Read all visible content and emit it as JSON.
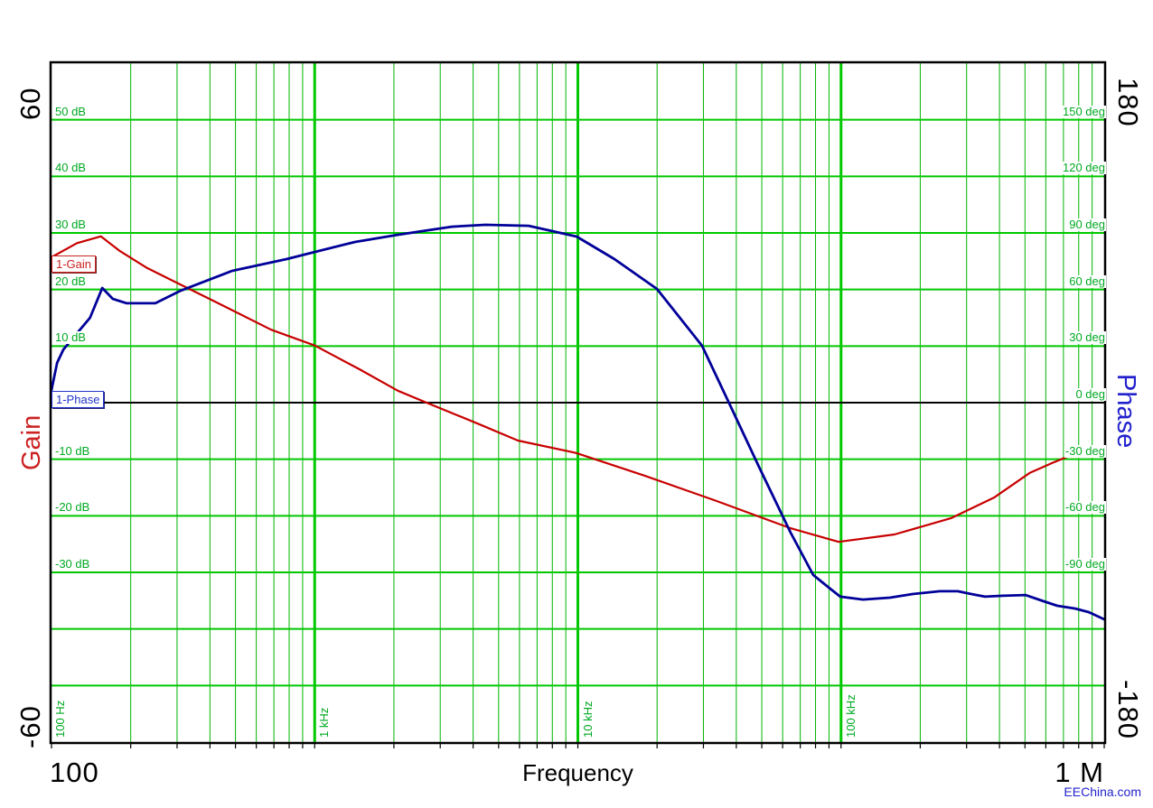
{
  "watermark": {
    "text": "EEChina.com",
    "color": "#2222CC"
  },
  "colors": {
    "background": "#FFFFFF",
    "grid_major": "#00C800",
    "grid_minor": "#00B400",
    "grid_label": "#00AA22",
    "axis_frame": "#000000",
    "zero_line": "#000000",
    "gain_curve": "#C80000",
    "phase_curve": "#000099"
  },
  "axes": {
    "x": {
      "label": "Frequency",
      "scale": "log",
      "min_hz": 100,
      "max_hz": 1000000,
      "corner_min_label": "100",
      "corner_max_label": "1 M",
      "decade_tick_labels": [
        {
          "hz": 100,
          "label": "100 Hz"
        },
        {
          "hz": 1000,
          "label": "1 kHz"
        },
        {
          "hz": 10000,
          "label": "10 kHz"
        },
        {
          "hz": 100000,
          "label": "100 kHz"
        }
      ]
    },
    "gain": {
      "title": "Gain",
      "outer_max_label": "60",
      "outer_min_label": "-60",
      "min": -60,
      "max": 60,
      "step": 10,
      "tick_labels": [
        {
          "value": 50,
          "label": "50 dB"
        },
        {
          "value": 40,
          "label": "40 dB"
        },
        {
          "value": 30,
          "label": "30 dB"
        },
        {
          "value": 20,
          "label": "20 dB"
        },
        {
          "value": 10,
          "label": "10 dB"
        },
        {
          "value": -10,
          "label": "-10 dB"
        },
        {
          "value": -20,
          "label": "-20 dB"
        },
        {
          "value": -30,
          "label": "-30 dB"
        }
      ]
    },
    "phase": {
      "title": "Phase",
      "outer_max_label": "180",
      "outer_min_label": "-180",
      "min": -180,
      "max": 180,
      "step": 30,
      "tick_labels": [
        {
          "value": 150,
          "label": "150 deg"
        },
        {
          "value": 120,
          "label": "120 deg"
        },
        {
          "value": 90,
          "label": "90 deg"
        },
        {
          "value": 60,
          "label": "60 deg"
        },
        {
          "value": 30,
          "label": "30 deg"
        },
        {
          "value": 0,
          "label": "0 deg"
        },
        {
          "value": -30,
          "label": "-30 deg"
        },
        {
          "value": -60,
          "label": "-60 deg"
        },
        {
          "value": -90,
          "label": "-90 deg"
        }
      ]
    }
  },
  "chart_data": {
    "type": "line",
    "title": "",
    "x_axis": {
      "label": "Frequency",
      "scale": "log",
      "range_hz": [
        100,
        1000000
      ]
    },
    "y_axes": [
      {
        "id": "gain",
        "label": "Gain",
        "unit": "dB",
        "range": [
          -60,
          60
        ],
        "grid_step": 10
      },
      {
        "id": "phase",
        "label": "Phase",
        "unit": "deg",
        "range": [
          -180,
          180
        ],
        "grid_step": 30
      }
    ],
    "grid": true,
    "legend_position": "inside-left",
    "series": [
      {
        "name": "1-Gain",
        "y_axis": "gain",
        "color": "#C80000",
        "points": [
          [
            100,
            25.7
          ],
          [
            125,
            28.2
          ],
          [
            154,
            29.4
          ],
          [
            182,
            26.8
          ],
          [
            231,
            23.8
          ],
          [
            293,
            21.4
          ],
          [
            425,
            17.7
          ],
          [
            683,
            12.9
          ],
          [
            1000,
            10.1
          ],
          [
            1480,
            5.9
          ],
          [
            2070,
            2.1
          ],
          [
            2660,
            0.0
          ],
          [
            4210,
            -3.8
          ],
          [
            5920,
            -6.7
          ],
          [
            9860,
            -8.9
          ],
          [
            17900,
            -12.9
          ],
          [
            33700,
            -17.4
          ],
          [
            64300,
            -22.2
          ],
          [
            97900,
            -24.6
          ],
          [
            159600,
            -23.3
          ],
          [
            262900,
            -20.4
          ],
          [
            381000,
            -16.8
          ],
          [
            522000,
            -12.4
          ],
          [
            647000,
            -10.5
          ],
          [
            796000,
            -8.8
          ],
          [
            1000000,
            -8.3
          ]
        ]
      },
      {
        "name": "1-Phase",
        "y_axis": "phase",
        "color": "#000099",
        "points": [
          [
            100,
            6.7
          ],
          [
            105,
            21.1
          ],
          [
            111,
            28.2
          ],
          [
            140,
            45.0
          ],
          [
            156,
            60.8
          ],
          [
            171,
            55.0
          ],
          [
            193,
            52.7
          ],
          [
            248,
            52.7
          ],
          [
            310,
            59.4
          ],
          [
            486,
            69.9
          ],
          [
            782,
            76.1
          ],
          [
            1000,
            79.9
          ],
          [
            1425,
            85.2
          ],
          [
            2065,
            89.0
          ],
          [
            3320,
            93.3
          ],
          [
            4450,
            94.3
          ],
          [
            6500,
            93.8
          ],
          [
            9890,
            88.1
          ],
          [
            13770,
            76.1
          ],
          [
            19970,
            60.3
          ],
          [
            29640,
            30.2
          ],
          [
            37900,
            -1.4
          ],
          [
            48760,
            -34.0
          ],
          [
            64300,
            -68.9
          ],
          [
            78400,
            -91.4
          ],
          [
            91800,
            -99.1
          ],
          [
            99300,
            -102.9
          ],
          [
            121100,
            -104.4
          ],
          [
            153500,
            -103.4
          ],
          [
            187100,
            -101.5
          ],
          [
            237200,
            -100.0
          ],
          [
            277900,
            -100.0
          ],
          [
            312600,
            -101.5
          ],
          [
            352400,
            -102.9
          ],
          [
            412600,
            -102.4
          ],
          [
            502400,
            -102.0
          ],
          [
            588800,
            -105.3
          ],
          [
            663200,
            -107.7
          ],
          [
            776800,
            -109.2
          ],
          [
            874900,
            -111.1
          ],
          [
            1000000,
            -114.9
          ]
        ]
      }
    ]
  }
}
